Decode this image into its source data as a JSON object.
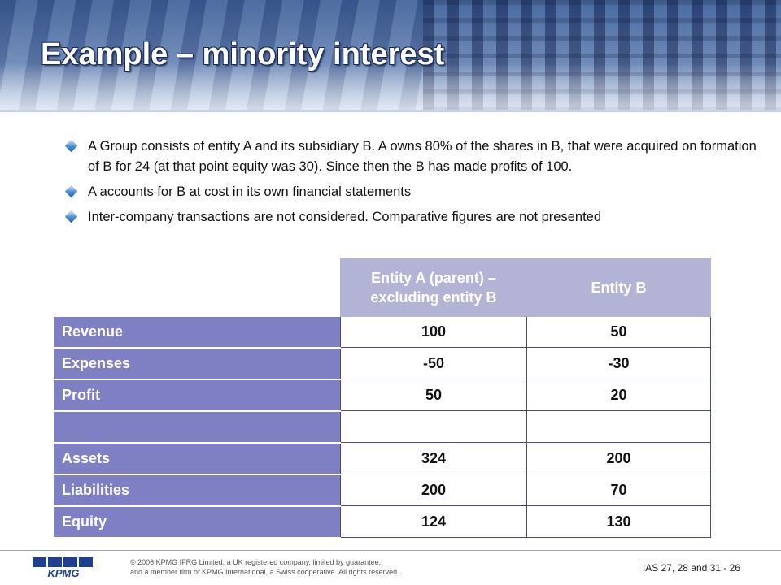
{
  "slide": {
    "title": "Example – minority interest",
    "bullets": [
      "A Group consists of entity A and its subsidiary B.  A owns 80% of the shares in B, that were acquired on formation of B for 24 (at that point equity was 30).  Since then the B has made profits of 100.",
      "A accounts for B at cost in its own financial statements",
      "Inter-company transactions are not considered.  Comparative figures are not presented"
    ]
  },
  "table": {
    "col_a_header": "Entity A (parent) – excluding entity B",
    "col_b_header": "Entity B",
    "rows": [
      {
        "label": "Revenue",
        "a": "100",
        "b": "50"
      },
      {
        "label": "Expenses",
        "a": "-50",
        "b": "-30"
      },
      {
        "label": "Profit",
        "a": "50",
        "b": "20"
      },
      {
        "label": "",
        "a": "",
        "b": ""
      },
      {
        "label": "Assets",
        "a": "324",
        "b": "200"
      },
      {
        "label": "Liabilities",
        "a": "200",
        "b": "70"
      },
      {
        "label": "Equity",
        "a": "124",
        "b": "130"
      }
    ]
  },
  "footer": {
    "logo_text": "KPMG",
    "copyright_line1": "© 2006 KPMG IFRG Limited, a UK registered company, limited by guarantee,",
    "copyright_line2": "and a member firm of KPMG International, a Swiss cooperative. All rights reserved.",
    "page_label": "IAS 27, 28 and 31 - 26"
  },
  "colors": {
    "row_label_bg": "#7f7fc4",
    "header_bg": "#b3b3d6",
    "bullet": "#3a86cf"
  },
  "icons": {
    "bullet": "diamond-bullet-icon",
    "logo": "kpmg-logo-icon"
  }
}
